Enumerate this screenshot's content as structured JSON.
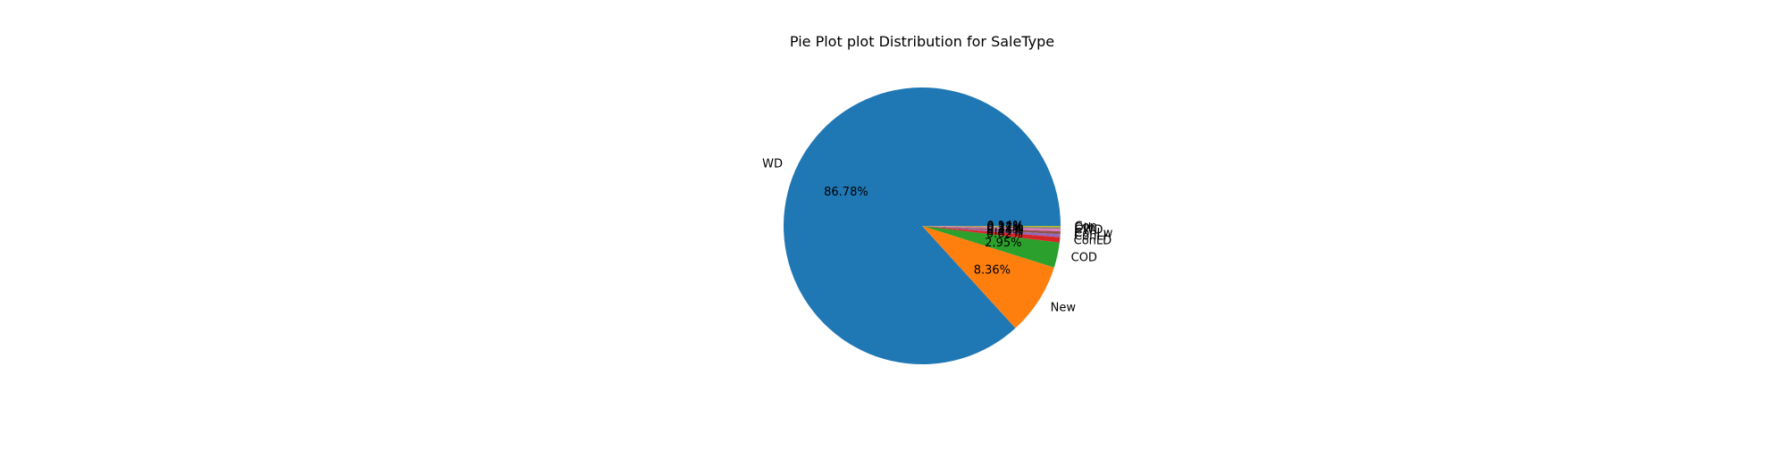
{
  "chart_data": {
    "type": "pie",
    "title": "Pie Plot plot Distribution for SaleType",
    "labels": [
      "WD",
      "New",
      "COD",
      "ConLD",
      "ConLI",
      "ConLw",
      "CWD",
      "Oth",
      "Con"
    ],
    "values": [
      86.78,
      8.36,
      2.95,
      0.62,
      0.34,
      0.34,
      0.27,
      0.21,
      0.14
    ],
    "display_pct": [
      "86.78%",
      "8.36%",
      "2.95%",
      "0.62%",
      "0.34%",
      "0.34%",
      "0.27%",
      "0.21%",
      "0.14%"
    ],
    "colors": [
      "#1f77b4",
      "#ff7f0e",
      "#2ca02c",
      "#d62728",
      "#9467bd",
      "#8c564b",
      "#e377c2",
      "#7f7f7f",
      "#bcbd22"
    ],
    "start_angle_deg": 0,
    "direction": "counterclockwise",
    "legend": "none"
  }
}
